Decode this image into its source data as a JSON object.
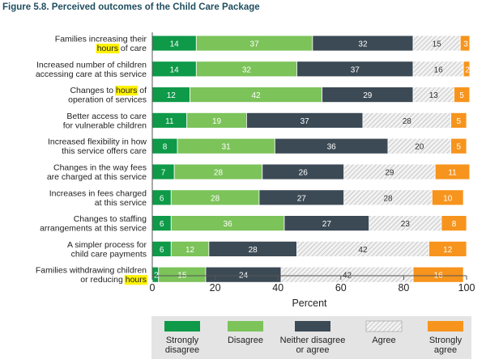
{
  "figure_title": "Figure 5.8.   Perceived outcomes of the Child Care Package",
  "highlight_term": "hours",
  "colors": {
    "title": "#1f4e5f",
    "strongly_disagree": "#0e9a48",
    "disagree": "#7cc35a",
    "neither": "#3c4a55",
    "agree_fill": "#f2f2f2",
    "agree_hatch": "#b0b0b0",
    "strongly_agree": "#f7941d",
    "highlight": "#fff200",
    "legend_bg": "#e4e4e4"
  },
  "chart_data": {
    "type": "bar",
    "orientation": "horizontal",
    "stacked": true,
    "xlabel": "Percent",
    "xlim": [
      0,
      100
    ],
    "xticks": [
      "0",
      "20",
      "40",
      "60",
      "80",
      "100"
    ],
    "grid": false,
    "legend_position": "bottom",
    "categories": [
      [
        "Families increasing their",
        "hours of care"
      ],
      [
        "Increased number of children",
        "accessing care at this service"
      ],
      [
        "Changes to hours of",
        "operation of services"
      ],
      [
        "Better access to care",
        "for vulnerable children"
      ],
      [
        "Increased flexibility in how",
        "this service offers care"
      ],
      [
        "Changes in the way fees",
        "are charged at this service"
      ],
      [
        "Increases in fees charged",
        "at this service"
      ],
      [
        "Changes to staffing",
        "arrangements at this service"
      ],
      [
        "A simpler process for",
        "child care payments"
      ],
      [
        "Families withdrawing children",
        "or reducing hours"
      ]
    ],
    "series": [
      {
        "name": "Strongly disagree",
        "legend_lines": [
          "Strongly",
          "disagree"
        ],
        "values": [
          14,
          14,
          12,
          11,
          8,
          7,
          6,
          6,
          6,
          2
        ]
      },
      {
        "name": "Disagree",
        "legend_lines": [
          "Disagree"
        ],
        "values": [
          37,
          32,
          42,
          19,
          31,
          28,
          28,
          36,
          12,
          15
        ]
      },
      {
        "name": "Neither disagree or agree",
        "legend_lines": [
          "Neither disagree",
          "or agree"
        ],
        "values": [
          32,
          37,
          29,
          37,
          36,
          26,
          27,
          27,
          28,
          24
        ]
      },
      {
        "name": "Agree",
        "legend_lines": [
          "Agree"
        ],
        "values": [
          15,
          16,
          13,
          28,
          20,
          29,
          28,
          23,
          42,
          42
        ]
      },
      {
        "name": "Strongly agree",
        "legend_lines": [
          "Strongly",
          "agree"
        ],
        "values": [
          3,
          2,
          5,
          5,
          5,
          11,
          10,
          8,
          12,
          16
        ]
      }
    ]
  }
}
